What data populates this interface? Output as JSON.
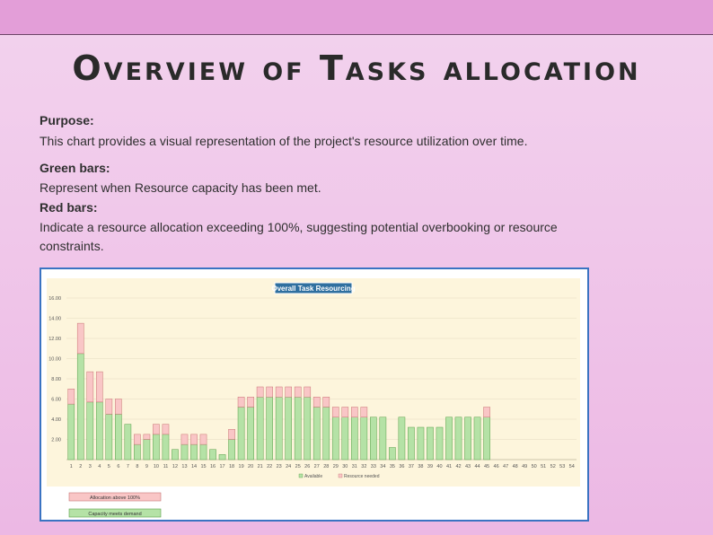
{
  "page": {
    "title": "Overview of Tasks allocation",
    "purpose_label": "Purpose:",
    "purpose_text": "This chart provides a visual representation of the project's resource utilization over time.",
    "green_label": "Green bars:",
    "green_text": "Represent when Resource capacity has been met.",
    "red_label": "Red bars:",
    "red_text": "Indicate a resource allocation exceeding 100%, suggesting potential overbooking or resource constraints."
  },
  "colors": {
    "available": "#b5e2a6",
    "available_stroke": "#5aa04a",
    "needed": "#f9c6c6",
    "needed_stroke": "#c97575",
    "plot_bg": "#fdf5dc",
    "title_bg": "#2f6f9f"
  },
  "boxes": {
    "red": "Allocation above 100%",
    "green": "Capacity meets demand"
  },
  "chart_data": {
    "type": "bar",
    "stacked": true,
    "title": "Overall Task Resourcing",
    "ylim": [
      0,
      16
    ],
    "yticks": [
      "2.00",
      "4.00",
      "6.00",
      "8.00",
      "10.00",
      "12.00",
      "14.00",
      "16.00"
    ],
    "categories": [
      "1",
      "2",
      "3",
      "4",
      "5",
      "6",
      "7",
      "8",
      "9",
      "10",
      "11",
      "12",
      "13",
      "14",
      "15",
      "16",
      "17",
      "18",
      "19",
      "20",
      "21",
      "22",
      "23",
      "24",
      "25",
      "26",
      "27",
      "28",
      "29",
      "30",
      "31",
      "32",
      "33",
      "34",
      "35",
      "36",
      "37",
      "38",
      "39",
      "40",
      "41",
      "42",
      "43",
      "44",
      "45",
      "46",
      "47",
      "48",
      "49",
      "50",
      "51",
      "52",
      "53",
      "54"
    ],
    "series": [
      {
        "name": "Available",
        "values": [
          5.5,
          10.5,
          5.7,
          5.7,
          4.5,
          4.5,
          3.5,
          1.5,
          2.0,
          2.5,
          2.5,
          1.0,
          1.5,
          1.5,
          1.5,
          1.0,
          0.5,
          2.0,
          5.2,
          5.2,
          6.2,
          6.2,
          6.2,
          6.2,
          6.2,
          6.2,
          5.2,
          5.2,
          4.2,
          4.2,
          4.2,
          4.2,
          4.2,
          4.2,
          1.2,
          4.2,
          3.2,
          3.2,
          3.2,
          3.2,
          4.2,
          4.2,
          4.2,
          4.2,
          4.2,
          0,
          0,
          0,
          0,
          0,
          0,
          0,
          0,
          0
        ]
      },
      {
        "name": "Resource needed",
        "values": [
          1.5,
          3.0,
          3.0,
          3.0,
          1.5,
          1.5,
          0,
          1.0,
          0.5,
          1.0,
          1.0,
          0,
          1.0,
          1.0,
          1.0,
          0,
          0,
          1.0,
          1.0,
          1.0,
          1.0,
          1.0,
          1.0,
          1.0,
          1.0,
          1.0,
          1.0,
          1.0,
          1.0,
          1.0,
          1.0,
          1.0,
          0,
          0,
          0,
          0,
          0,
          0,
          0,
          0,
          0,
          0,
          0,
          0,
          1.0,
          0,
          0,
          0,
          0,
          0,
          0,
          0,
          0,
          0
        ]
      }
    ],
    "legend": "bottom-center",
    "grid": true
  }
}
